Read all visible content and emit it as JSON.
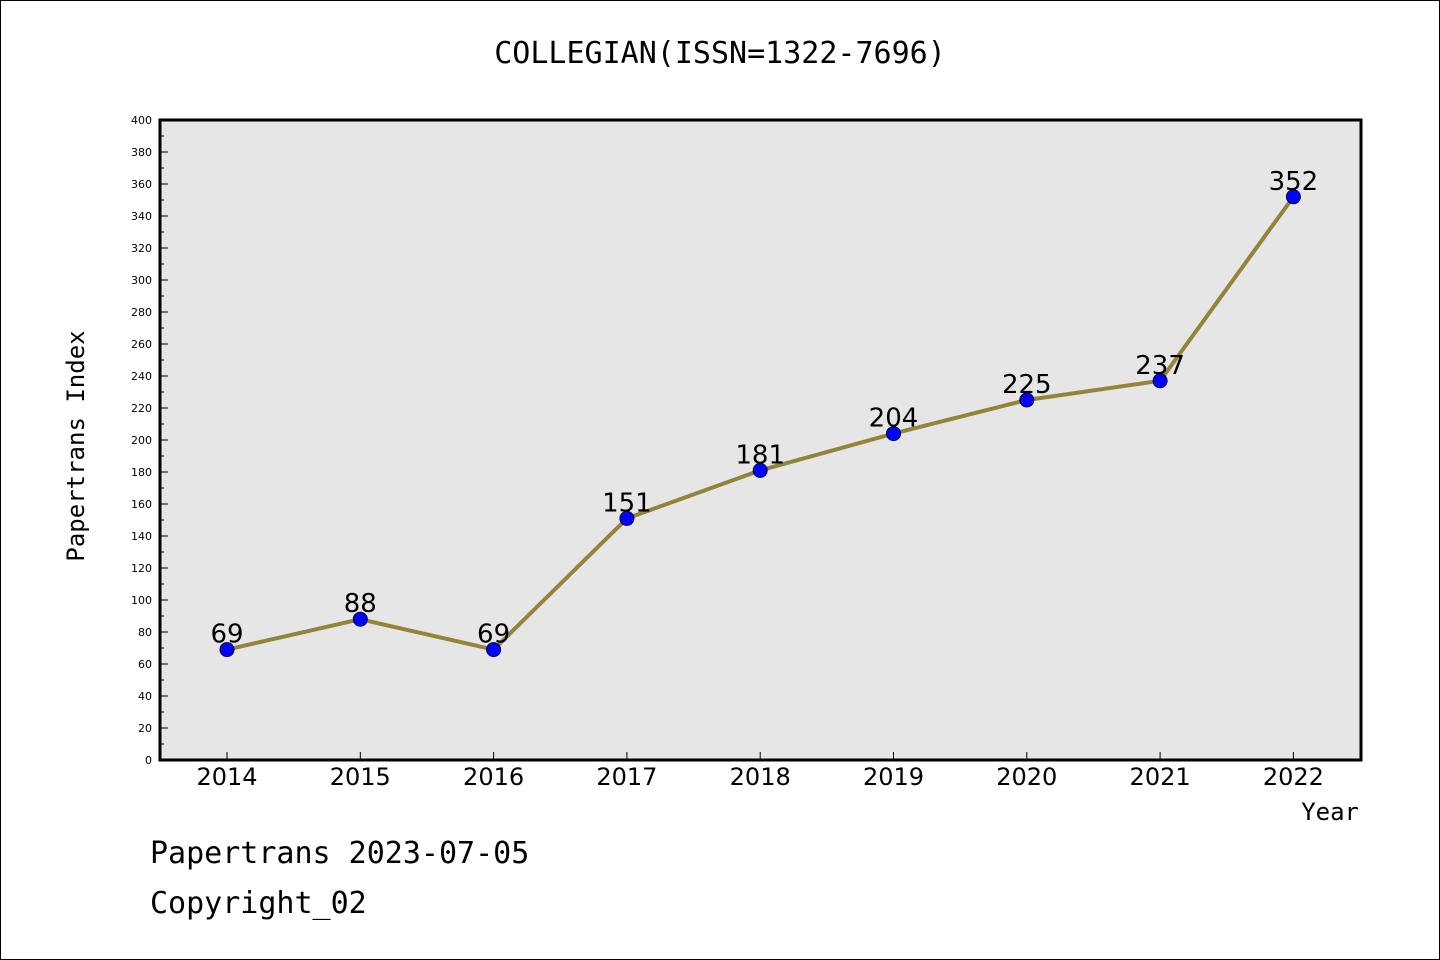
{
  "chart_data": {
    "type": "line",
    "title": "COLLEGIAN(ISSN=1322-7696)",
    "xlabel": "Year",
    "ylabel": "Papertrans Index",
    "categories": [
      "2014",
      "2015",
      "2016",
      "2017",
      "2018",
      "2019",
      "2020",
      "2021",
      "2022"
    ],
    "values": [
      69,
      88,
      69,
      151,
      181,
      204,
      225,
      237,
      352
    ],
    "data_labels": [
      "69",
      "88",
      "69",
      "151",
      "181",
      "204",
      "225",
      "237",
      "352"
    ],
    "ylim": [
      0,
      400
    ],
    "yticks": [
      0,
      20,
      40,
      60,
      80,
      100,
      120,
      140,
      160,
      180,
      200,
      220,
      240,
      260,
      280,
      300,
      320,
      340,
      360,
      380,
      400
    ],
    "grid": false,
    "colors": {
      "line": "#94843a",
      "marker": "#0000ff",
      "plot_background": "#e6e6e6"
    }
  },
  "footer": {
    "line1": "Papertrans 2023-07-05",
    "line2": "Copyright_02"
  }
}
